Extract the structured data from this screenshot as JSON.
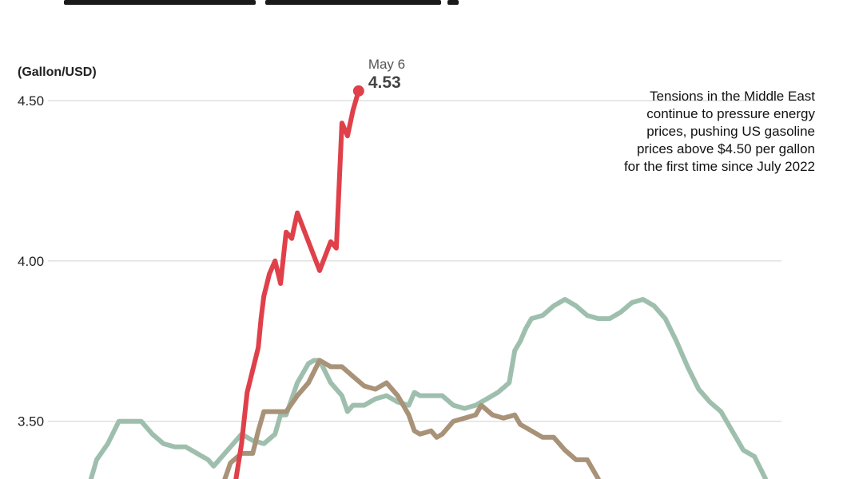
{
  "annotation": {
    "lines": [
      "Tensions in the Middle East",
      "continue to pressure energy",
      "prices, pushing US gasoline",
      "prices above $4.50 per gallon",
      "for the first time since July 2022"
    ]
  },
  "callout": {
    "date": "May 6",
    "value": "4.53"
  },
  "chart_data": {
    "type": "line",
    "title": "",
    "xlabel": "",
    "ylabel": "(Gallon/USD)",
    "ylim": [
      3.32,
      4.78
    ],
    "yticks": [
      "4.50",
      "4.00",
      "3.50"
    ],
    "grid": true,
    "series": [
      {
        "color": "#9fbfae",
        "values": [
          [
            3,
            3.32
          ],
          [
            4,
            3.38
          ],
          [
            6,
            3.43
          ],
          [
            8,
            3.5
          ],
          [
            10,
            3.5
          ],
          [
            12,
            3.5
          ],
          [
            14,
            3.46
          ],
          [
            16,
            3.43
          ],
          [
            18,
            3.42
          ],
          [
            20,
            3.42
          ],
          [
            22,
            3.4
          ],
          [
            24,
            3.38
          ],
          [
            25,
            3.36
          ],
          [
            26,
            3.38
          ],
          [
            28,
            3.42
          ],
          [
            30,
            3.46
          ],
          [
            32,
            3.44
          ],
          [
            34,
            3.43
          ],
          [
            36,
            3.46
          ],
          [
            37,
            3.52
          ],
          [
            38,
            3.52
          ],
          [
            40,
            3.62
          ],
          [
            42,
            3.68
          ],
          [
            43,
            3.69
          ],
          [
            44,
            3.69
          ],
          [
            46,
            3.62
          ],
          [
            47,
            3.6
          ],
          [
            48,
            3.58
          ],
          [
            49,
            3.53
          ],
          [
            50,
            3.55
          ],
          [
            52,
            3.55
          ],
          [
            54,
            3.57
          ],
          [
            56,
            3.58
          ],
          [
            58,
            3.56
          ],
          [
            60,
            3.55
          ],
          [
            61,
            3.59
          ],
          [
            62,
            3.58
          ],
          [
            64,
            3.58
          ],
          [
            66,
            3.58
          ],
          [
            68,
            3.55
          ],
          [
            70,
            3.54
          ],
          [
            72,
            3.55
          ],
          [
            74,
            3.57
          ],
          [
            76,
            3.59
          ],
          [
            78,
            3.62
          ],
          [
            79,
            3.72
          ],
          [
            80,
            3.75
          ],
          [
            81,
            3.79
          ],
          [
            82,
            3.82
          ],
          [
            84,
            3.83
          ],
          [
            86,
            3.86
          ],
          [
            88,
            3.88
          ],
          [
            90,
            3.86
          ],
          [
            92,
            3.83
          ],
          [
            94,
            3.82
          ],
          [
            96,
            3.82
          ],
          [
            98,
            3.84
          ],
          [
            100,
            3.87
          ],
          [
            102,
            3.88
          ],
          [
            104,
            3.86
          ],
          [
            106,
            3.82
          ],
          [
            108,
            3.75
          ],
          [
            110,
            3.67
          ],
          [
            112,
            3.6
          ],
          [
            114,
            3.56
          ],
          [
            116,
            3.53
          ],
          [
            118,
            3.47
          ],
          [
            120,
            3.41
          ],
          [
            122,
            3.39
          ],
          [
            124,
            3.32
          ]
        ]
      },
      {
        "color": "#a89278",
        "values": [
          [
            27,
            3.32
          ],
          [
            28,
            3.37
          ],
          [
            30,
            3.4
          ],
          [
            32,
            3.4
          ],
          [
            33,
            3.47
          ],
          [
            34,
            3.53
          ],
          [
            36,
            3.53
          ],
          [
            38,
            3.53
          ],
          [
            40,
            3.58
          ],
          [
            42,
            3.62
          ],
          [
            44,
            3.69
          ],
          [
            46,
            3.67
          ],
          [
            48,
            3.67
          ],
          [
            50,
            3.64
          ],
          [
            52,
            3.61
          ],
          [
            54,
            3.6
          ],
          [
            56,
            3.62
          ],
          [
            58,
            3.58
          ],
          [
            60,
            3.52
          ],
          [
            61,
            3.47
          ],
          [
            62,
            3.46
          ],
          [
            64,
            3.47
          ],
          [
            65,
            3.45
          ],
          [
            66,
            3.46
          ],
          [
            68,
            3.5
          ],
          [
            70,
            3.51
          ],
          [
            72,
            3.52
          ],
          [
            73,
            3.55
          ],
          [
            75,
            3.52
          ],
          [
            77,
            3.51
          ],
          [
            79,
            3.52
          ],
          [
            80,
            3.49
          ],
          [
            82,
            3.47
          ],
          [
            84,
            3.45
          ],
          [
            86,
            3.45
          ],
          [
            88,
            3.41
          ],
          [
            90,
            3.38
          ],
          [
            92,
            3.38
          ],
          [
            94,
            3.32
          ]
        ]
      },
      {
        "color": "#e0404a",
        "values": [
          [
            29,
            3.32
          ],
          [
            30,
            3.43
          ],
          [
            31,
            3.59
          ],
          [
            32,
            3.66
          ],
          [
            33,
            3.73
          ],
          [
            33.5,
            3.82
          ],
          [
            34,
            3.89
          ],
          [
            35,
            3.96
          ],
          [
            36,
            4.0
          ],
          [
            37,
            3.93
          ],
          [
            38,
            4.09
          ],
          [
            39,
            4.07
          ],
          [
            40,
            4.15
          ],
          [
            42,
            4.06
          ],
          [
            44,
            3.97
          ],
          [
            46,
            4.06
          ],
          [
            47,
            4.04
          ],
          [
            48,
            4.43
          ],
          [
            49,
            4.39
          ],
          [
            50,
            4.47
          ],
          [
            51,
            4.53
          ]
        ]
      }
    ]
  }
}
